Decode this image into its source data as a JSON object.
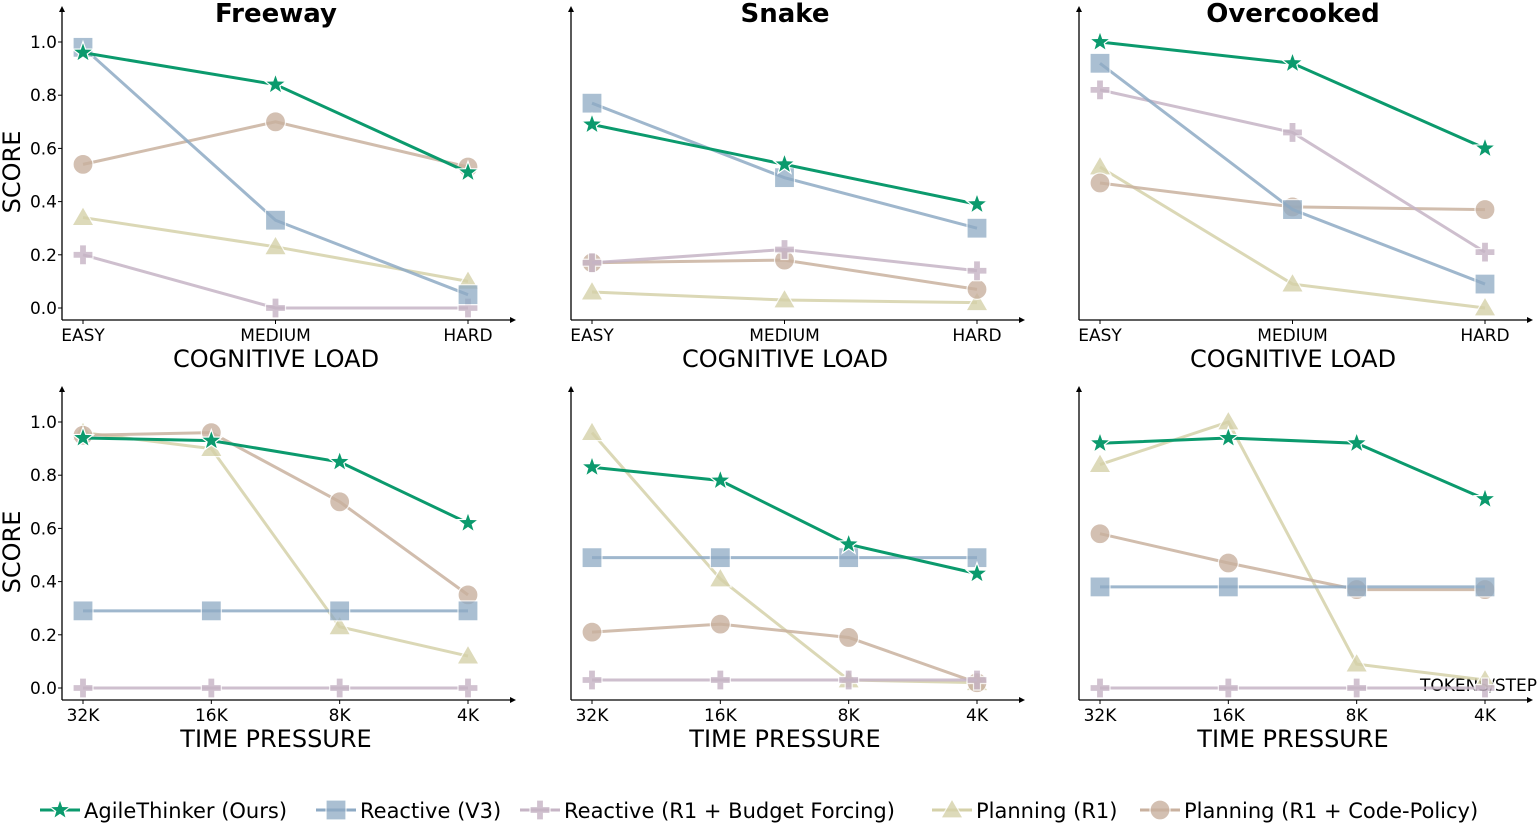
{
  "chart_data": [
    {
      "type": "line",
      "title": "Freeway",
      "xlabel": "COGNITIVE LOAD",
      "ylabel": "SCORE",
      "categories": [
        "EASY",
        "MEDIUM",
        "HARD"
      ],
      "ylim": [
        -0.05,
        1.1
      ],
      "yticks": [
        "0.0",
        "0.2",
        "0.4",
        "0.6",
        "0.8",
        "1.0"
      ],
      "series": [
        {
          "name": "AgileThinker (Ours)",
          "values": [
            0.96,
            0.84,
            0.51
          ]
        },
        {
          "name": "Reactive (V3)",
          "values": [
            0.98,
            0.33,
            0.05
          ]
        },
        {
          "name": "Reactive (R1 + Budget Forcing)",
          "values": [
            0.2,
            0.0,
            0.0
          ]
        },
        {
          "name": "Planning (R1)",
          "values": [
            0.34,
            0.23,
            0.1
          ]
        },
        {
          "name": "Planning (R1 + Code-Policy)",
          "values": [
            0.54,
            0.7,
            0.53
          ]
        }
      ]
    },
    {
      "type": "line",
      "title": "Snake",
      "xlabel": "COGNITIVE LOAD",
      "ylabel": "",
      "categories": [
        "EASY",
        "MEDIUM",
        "HARD"
      ],
      "ylim": [
        -0.05,
        1.1
      ],
      "yticks": [],
      "series": [
        {
          "name": "AgileThinker (Ours)",
          "values": [
            0.69,
            0.54,
            0.39
          ]
        },
        {
          "name": "Reactive (V3)",
          "values": [
            0.77,
            0.49,
            0.3
          ]
        },
        {
          "name": "Reactive (R1 + Budget Forcing)",
          "values": [
            0.17,
            0.22,
            0.14
          ]
        },
        {
          "name": "Planning (R1)",
          "values": [
            0.06,
            0.03,
            0.02
          ]
        },
        {
          "name": "Planning (R1 + Code-Policy)",
          "values": [
            0.17,
            0.18,
            0.07
          ]
        }
      ]
    },
    {
      "type": "line",
      "title": "Overcooked",
      "xlabel": "COGNITIVE LOAD",
      "ylabel": "",
      "categories": [
        "EASY",
        "MEDIUM",
        "HARD"
      ],
      "ylim": [
        -0.05,
        1.1
      ],
      "yticks": [],
      "series": [
        {
          "name": "AgileThinker (Ours)",
          "values": [
            1.0,
            0.92,
            0.6
          ]
        },
        {
          "name": "Reactive (V3)",
          "values": [
            0.92,
            0.37,
            0.09
          ]
        },
        {
          "name": "Reactive (R1 + Budget Forcing)",
          "values": [
            0.82,
            0.66,
            0.21
          ]
        },
        {
          "name": "Planning (R1)",
          "values": [
            0.53,
            0.09,
            0.0
          ]
        },
        {
          "name": "Planning (R1 + Code-Policy)",
          "values": [
            0.47,
            0.38,
            0.37
          ]
        }
      ]
    },
    {
      "type": "line",
      "title": "",
      "xlabel": "TIME PRESSURE",
      "ylabel": "SCORE",
      "categories": [
        "32K",
        "16K",
        "8K",
        "4K"
      ],
      "ylim": [
        -0.05,
        1.1
      ],
      "yticks": [
        "0.0",
        "0.2",
        "0.4",
        "0.6",
        "0.8",
        "1.0"
      ],
      "series": [
        {
          "name": "AgileThinker (Ours)",
          "values": [
            0.94,
            0.93,
            0.85,
            0.62
          ]
        },
        {
          "name": "Reactive (V3)",
          "values": [
            0.29,
            0.29,
            0.29,
            0.29
          ]
        },
        {
          "name": "Reactive (R1 + Budget Forcing)",
          "values": [
            0.0,
            0.0,
            0.0,
            0.0
          ]
        },
        {
          "name": "Planning (R1)",
          "values": [
            0.96,
            0.9,
            0.23,
            0.12
          ]
        },
        {
          "name": "Planning (R1 + Code-Policy)",
          "values": [
            0.95,
            0.96,
            0.7,
            0.35
          ]
        }
      ]
    },
    {
      "type": "line",
      "title": "",
      "xlabel": "TIME PRESSURE",
      "ylabel": "",
      "categories": [
        "32K",
        "16K",
        "8K",
        "4K"
      ],
      "ylim": [
        -0.05,
        1.1
      ],
      "yticks": [],
      "series": [
        {
          "name": "AgileThinker (Ours)",
          "values": [
            0.83,
            0.78,
            0.54,
            0.43
          ]
        },
        {
          "name": "Reactive (V3)",
          "values": [
            0.49,
            0.49,
            0.49,
            0.49
          ]
        },
        {
          "name": "Reactive (R1 + Budget Forcing)",
          "values": [
            0.03,
            0.03,
            0.03,
            0.03
          ]
        },
        {
          "name": "Planning (R1)",
          "values": [
            0.96,
            0.41,
            0.03,
            0.02
          ]
        },
        {
          "name": "Planning (R1 + Code-Policy)",
          "values": [
            0.21,
            0.24,
            0.19,
            0.02
          ]
        }
      ]
    },
    {
      "type": "line",
      "title": "",
      "xlabel": "TIME PRESSURE",
      "ylabel": "",
      "categories": [
        "32K",
        "16K",
        "8K",
        "4K"
      ],
      "ylim": [
        -0.05,
        1.1
      ],
      "yticks": [],
      "annotation": "TOKENS/STEP",
      "series": [
        {
          "name": "AgileThinker (Ours)",
          "values": [
            0.92,
            0.94,
            0.92,
            0.71
          ]
        },
        {
          "name": "Reactive (V3)",
          "values": [
            0.38,
            0.38,
            0.38,
            0.38
          ]
        },
        {
          "name": "Reactive (R1 + Budget Forcing)",
          "values": [
            0.0,
            0.0,
            0.0,
            0.0
          ]
        },
        {
          "name": "Planning (R1)",
          "values": [
            0.84,
            1.0,
            0.09,
            0.03
          ]
        },
        {
          "name": "Planning (R1 + Code-Policy)",
          "values": [
            0.58,
            0.47,
            0.37,
            0.37
          ]
        }
      ]
    }
  ],
  "legend": {
    "placement": "bottom",
    "entries": [
      {
        "label": "AgileThinker (Ours)",
        "color": "#0b9a6d",
        "marker": "star"
      },
      {
        "label": "Reactive (V3)",
        "color": "#8eaac4",
        "marker": "square"
      },
      {
        "label": "Reactive (R1 + Budget Forcing)",
        "color": "#c6b4c5",
        "marker": "plus"
      },
      {
        "label": "Planning (R1)",
        "color": "#d5d1a9",
        "marker": "triangle"
      },
      {
        "label": "Planning (R1 + Code-Policy)",
        "color": "#c9b19f",
        "marker": "circle"
      }
    ]
  }
}
